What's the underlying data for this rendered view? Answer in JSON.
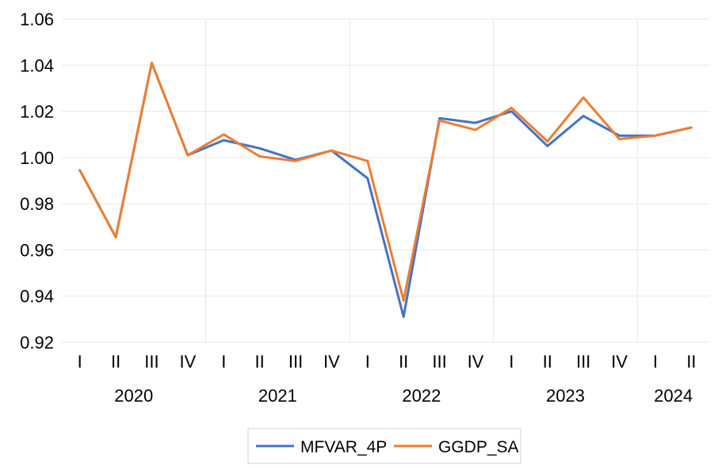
{
  "chart_data": {
    "type": "line",
    "title": "",
    "xlabel": "",
    "ylabel": "",
    "ylim": [
      0.92,
      1.06
    ],
    "y_ticks": [
      0.92,
      0.94,
      0.96,
      0.98,
      1.0,
      1.02,
      1.04,
      1.06
    ],
    "y_tick_labels": [
      "0.92",
      "0.94",
      "0.96",
      "0.98",
      "1.00",
      "1.02",
      "1.04",
      "1.06"
    ],
    "grid": true,
    "legend_position": "bottom",
    "quarter_labels": [
      "I",
      "II",
      "III",
      "IV",
      "I",
      "II",
      "III",
      "IV",
      "I",
      "II",
      "III",
      "IV",
      "I",
      "II",
      "III",
      "IV",
      "I",
      "II"
    ],
    "years": [
      {
        "label": "2020",
        "quarters": 4
      },
      {
        "label": "2021",
        "quarters": 4
      },
      {
        "label": "2022",
        "quarters": 4
      },
      {
        "label": "2023",
        "quarters": 4
      },
      {
        "label": "2024",
        "quarters": 2
      }
    ],
    "series": [
      {
        "name": "MFVAR_4P",
        "color": "#4472C4",
        "values": [
          0.9945,
          0.9655,
          1.041,
          1.001,
          1.0075,
          1.004,
          0.999,
          1.003,
          0.991,
          0.931,
          1.017,
          1.015,
          1.02,
          1.005,
          1.018,
          1.0095,
          1.0095,
          1.013
        ]
      },
      {
        "name": "GGDP_SA",
        "color": "#ED7D31",
        "values": [
          0.9945,
          0.9655,
          1.041,
          1.001,
          1.01,
          1.0005,
          0.9985,
          1.003,
          0.9985,
          0.938,
          1.016,
          1.012,
          1.0215,
          1.007,
          1.026,
          1.008,
          1.0095,
          1.013
        ]
      }
    ]
  }
}
